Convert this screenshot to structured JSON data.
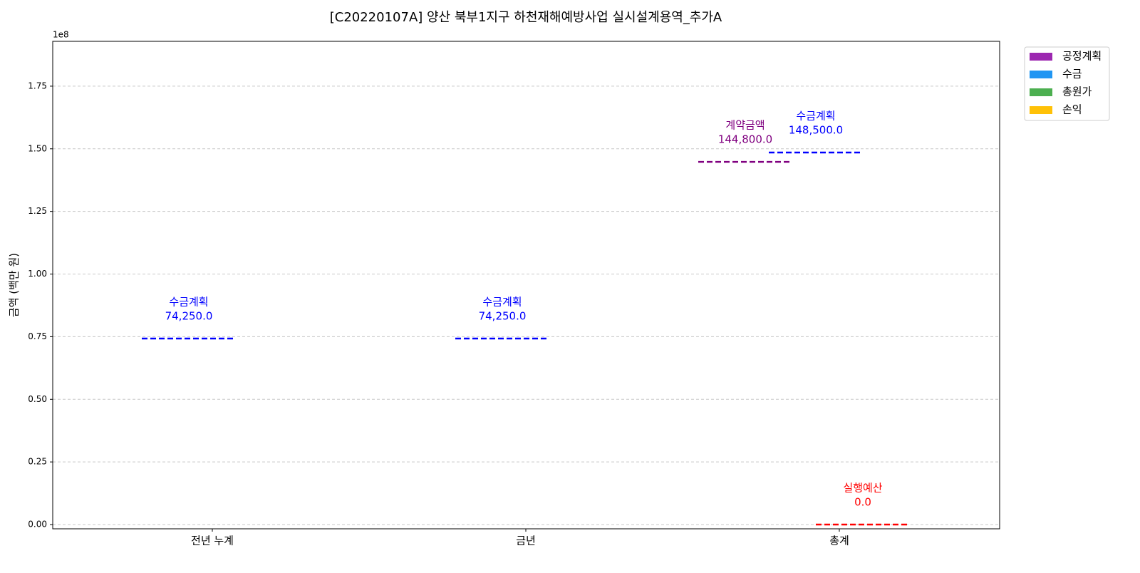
{
  "chart_data": {
    "type": "reference-lines",
    "title": "[C20220107A] 양산 북부1지구  하천재해예방사업 실시설계용역_추가A",
    "y_label": "금액 (백만 원)",
    "y_offset_text": "1e8",
    "categories": [
      "전년 누계",
      "금년",
      "총계"
    ],
    "series": [
      {
        "name": "수금계획",
        "color": "#0000ff",
        "values": [
          74250000,
          74250000,
          148500000
        ],
        "value_labels": [
          "74,250.0",
          "74,250.0",
          "148,500.0"
        ]
      },
      {
        "name": "계약금액",
        "color": "#800080",
        "values": [
          null,
          null,
          144800000
        ],
        "value_labels": [
          null,
          null,
          "144,800.0"
        ]
      },
      {
        "name": "실행예산",
        "color": "#ff0000",
        "values": [
          null,
          null,
          0
        ],
        "value_labels": [
          null,
          null,
          "0.0"
        ]
      }
    ],
    "ylim": [
      -1700000,
      192900000
    ],
    "yticks": [
      {
        "value": 0,
        "label": "0.00"
      },
      {
        "value": 25000000,
        "label": "0.25"
      },
      {
        "value": 50000000,
        "label": "0.50"
      },
      {
        "value": 75000000,
        "label": "0.75"
      },
      {
        "value": 100000000,
        "label": "1.00"
      },
      {
        "value": 125000000,
        "label": "1.25"
      },
      {
        "value": 150000000,
        "label": "1.50"
      },
      {
        "value": 175000000,
        "label": "1.75"
      }
    ],
    "grid": true,
    "legend": {
      "position": "outside-upper-right",
      "entries": [
        {
          "name": "공정계획",
          "color": "#9c27b0"
        },
        {
          "name": "수금",
          "color": "#2196f3"
        },
        {
          "name": "총원가",
          "color": "#4caf50"
        },
        {
          "name": "손익",
          "color": "#ffc107"
        }
      ]
    }
  }
}
